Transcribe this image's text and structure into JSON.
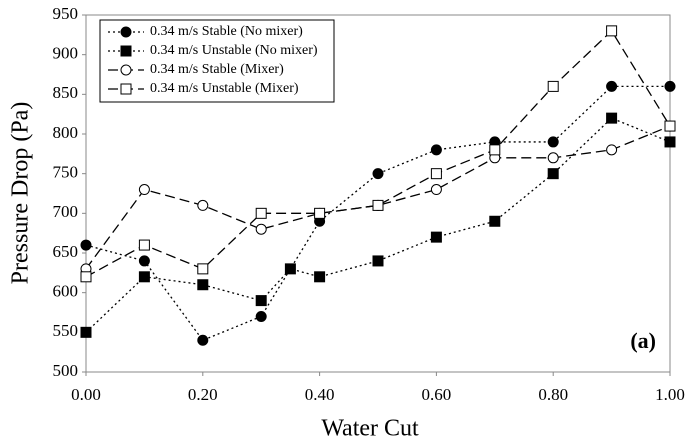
{
  "chart_data": {
    "type": "line",
    "x_label": "Water Cut",
    "y_label": "Pressure Drop (Pa)",
    "annotation": "(a)",
    "xlim": [
      0,
      1
    ],
    "xticks": [
      {
        "value": 0,
        "label": "0.00"
      },
      {
        "value": 0.2,
        "label": "0.20"
      },
      {
        "value": 0.4,
        "label": "0.40"
      },
      {
        "value": 0.6,
        "label": "0.60"
      },
      {
        "value": 0.8,
        "label": "0.80"
      },
      {
        "value": 1,
        "label": "1.00"
      }
    ],
    "ylim": [
      500,
      950
    ],
    "yticks": [
      500,
      550,
      600,
      650,
      700,
      750,
      800,
      850,
      900,
      950
    ],
    "grid": false,
    "legend": "upper left",
    "series": [
      {
        "name": "0.34 m/s Stable (No mixer)",
        "color": "#000000",
        "marker": "circle",
        "filled": true,
        "linestyle": "dotted",
        "x": [
          0,
          0.1,
          0.2,
          0.3,
          0.4,
          0.5,
          0.6,
          0.7,
          0.8,
          0.9,
          1.0
        ],
        "values": [
          660,
          640,
          540,
          570,
          690,
          750,
          780,
          790,
          790,
          860,
          860
        ]
      },
      {
        "name": "0.34 m/s Unstable (No mixer)",
        "color": "#000000",
        "marker": "square",
        "filled": true,
        "linestyle": "dotted",
        "x": [
          0,
          0.1,
          0.2,
          0.3,
          0.35,
          0.4,
          0.5,
          0.6,
          0.7,
          0.8,
          0.9,
          1.0
        ],
        "values": [
          550,
          620,
          610,
          590,
          630,
          620,
          640,
          670,
          690,
          750,
          820,
          790
        ]
      },
      {
        "name": "0.34 m/s Stable (Mixer)",
        "color": "#000000",
        "marker": "circle",
        "filled": false,
        "linestyle": "dashed",
        "x": [
          0,
          0.1,
          0.2,
          0.3,
          0.4,
          0.5,
          0.6,
          0.7,
          0.8,
          0.9,
          1.0
        ],
        "values": [
          630,
          730,
          710,
          680,
          700,
          710,
          730,
          770,
          770,
          780,
          810
        ]
      },
      {
        "name": "0.34 m/s Unstable (Mixer)",
        "color": "#000000",
        "marker": "square",
        "filled": false,
        "linestyle": "dashed",
        "x": [
          0,
          0.1,
          0.2,
          0.3,
          0.4,
          0.5,
          0.6,
          0.7,
          0.8,
          0.9,
          1.0
        ],
        "values": [
          620,
          660,
          630,
          700,
          700,
          710,
          750,
          780,
          860,
          930,
          810
        ]
      }
    ]
  }
}
